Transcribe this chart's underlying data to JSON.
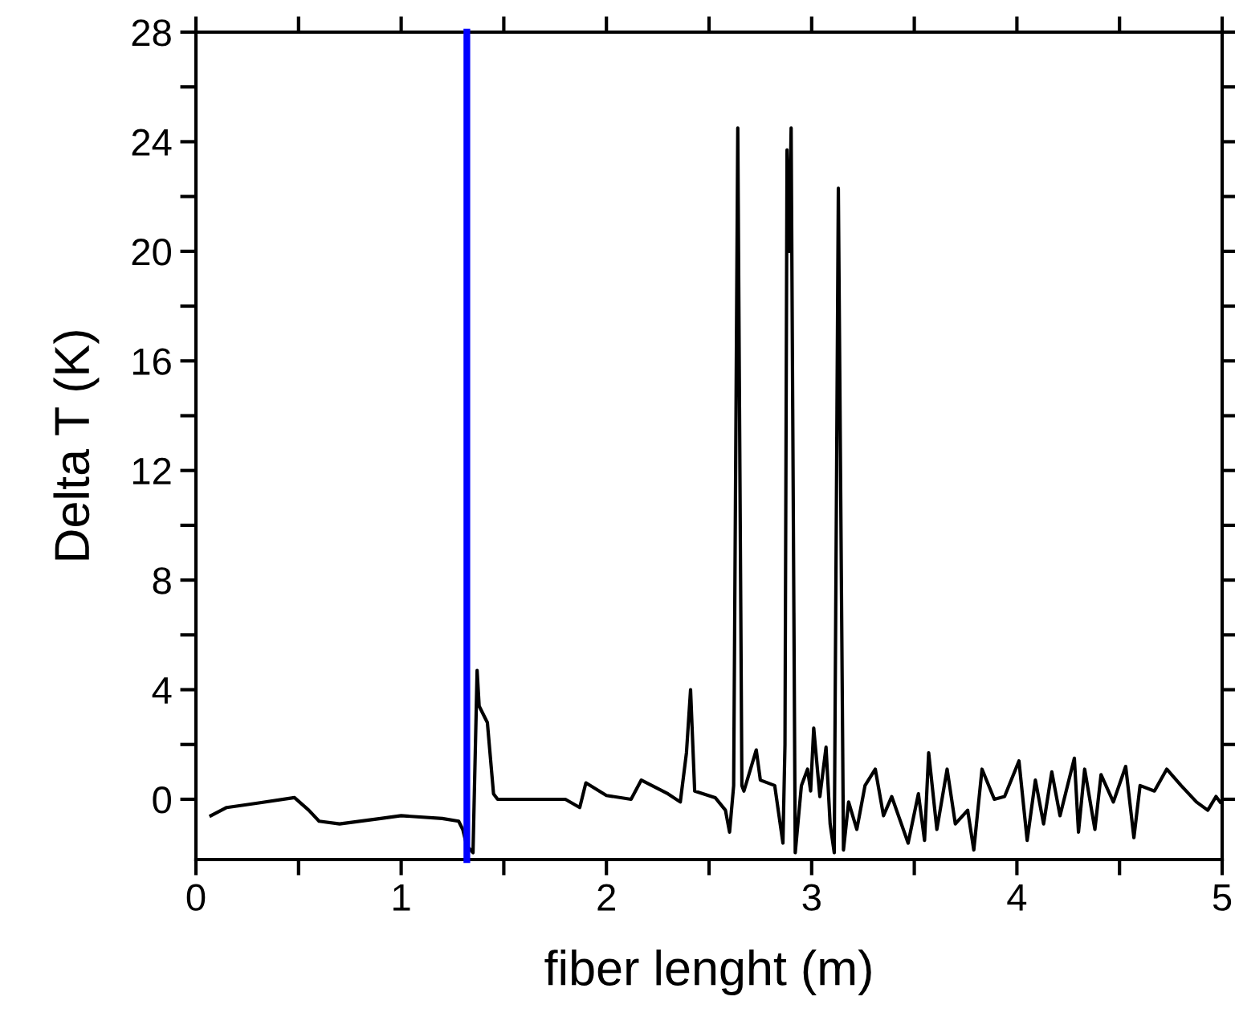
{
  "chart_data": {
    "type": "line",
    "xlabel": "fiber lenght (m)",
    "ylabel": "Delta T (K)",
    "xlim": [
      0,
      5
    ],
    "ylim": [
      -2.2,
      28
    ],
    "xticks": [
      0,
      {
        "value": 0.5,
        "label": null
      },
      1,
      {
        "value": 1.5,
        "label": null
      },
      2,
      {
        "value": 2.5,
        "label": null
      },
      3,
      {
        "value": 3.5,
        "label": null
      },
      4,
      {
        "value": 4.5,
        "label": null
      },
      5
    ],
    "yticks": [
      0,
      {
        "value": 2,
        "label": null
      },
      4,
      {
        "value": 6,
        "label": null
      },
      8,
      {
        "value": 10,
        "label": null
      },
      12,
      {
        "value": 14,
        "label": null
      },
      16,
      {
        "value": 18,
        "label": null
      },
      20,
      {
        "value": 22,
        "label": null
      },
      24,
      {
        "value": 26,
        "label": null
      },
      28
    ],
    "grid": false,
    "legend": false,
    "marker": "none",
    "line_style": "solid",
    "ref_lines": [
      {
        "axis": "x",
        "value": 1.32,
        "label": null,
        "color": "#0000ff"
      }
    ],
    "series": [
      {
        "color": "#000000",
        "x": [
          0.073,
          0.15,
          0.3,
          0.48,
          0.55,
          0.6,
          0.7,
          0.9,
          1.0,
          1.2,
          1.28,
          1.3,
          1.32,
          1.35,
          1.37,
          1.38,
          1.42,
          1.45,
          1.47,
          1.6,
          1.8,
          1.87,
          1.9,
          2.0,
          2.12,
          2.17,
          2.3,
          2.36,
          2.39,
          2.41,
          2.43,
          2.53,
          2.58,
          2.6,
          2.62,
          2.64,
          2.66,
          2.67,
          2.73,
          2.75,
          2.82,
          2.86,
          2.87,
          2.88,
          2.89,
          2.9,
          2.92,
          2.95,
          2.98,
          2.995,
          3.01,
          3.04,
          3.07,
          3.09,
          3.11,
          3.13,
          3.155,
          3.18,
          3.22,
          3.26,
          3.31,
          3.35,
          3.39,
          3.47,
          3.52,
          3.55,
          3.57,
          3.61,
          3.66,
          3.7,
          3.76,
          3.79,
          3.83,
          3.89,
          3.94,
          4.01,
          4.05,
          4.09,
          4.13,
          4.17,
          4.21,
          4.28,
          4.3,
          4.33,
          4.38,
          4.41,
          4.47,
          4.53,
          4.57,
          4.6,
          4.67,
          4.73,
          4.8,
          4.875,
          4.93,
          4.97,
          4.99
        ],
        "values": [
          -0.6,
          -0.3,
          -0.14,
          0.06,
          -0.4,
          -0.8,
          -0.9,
          -0.7,
          -0.6,
          -0.7,
          -0.8,
          -1.1,
          -1.7,
          -1.95,
          4.7,
          3.4,
          2.8,
          0.2,
          0.0,
          0.0,
          0.0,
          -0.3,
          0.6,
          0.14,
          0.0,
          0.7,
          0.2,
          -0.1,
          1.7,
          4.0,
          0.3,
          0.06,
          -0.4,
          -1.2,
          0.5,
          24.5,
          0.5,
          0.3,
          1.8,
          0.7,
          0.5,
          -1.6,
          2.0,
          23.7,
          20.0,
          24.5,
          -1.95,
          0.5,
          1.1,
          0.3,
          2.6,
          0.1,
          1.9,
          -0.9,
          -1.95,
          22.3,
          -1.85,
          -0.1,
          -1.1,
          0.5,
          1.1,
          -0.6,
          0.1,
          -1.6,
          0.2,
          -1.5,
          1.7,
          -1.1,
          1.1,
          -0.9,
          -0.4,
          -1.85,
          1.1,
          0.0,
          0.1,
          1.4,
          -1.5,
          0.7,
          -0.9,
          1.0,
          -0.6,
          1.5,
          -1.2,
          1.1,
          -1.1,
          0.9,
          -0.1,
          1.2,
          -1.4,
          0.5,
          0.3,
          1.1,
          0.5,
          -0.1,
          -0.4,
          0.1,
          -0.1
        ]
      }
    ]
  }
}
